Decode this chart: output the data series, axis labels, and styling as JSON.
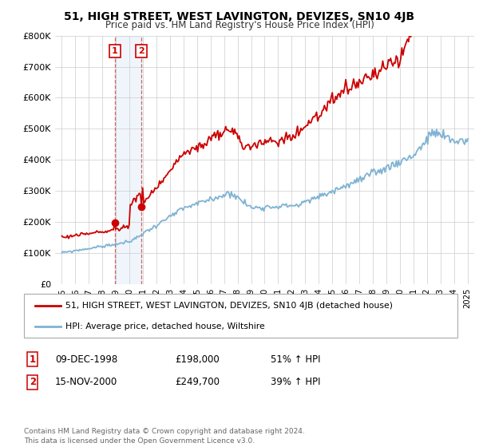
{
  "title": "51, HIGH STREET, WEST LAVINGTON, DEVIZES, SN10 4JB",
  "subtitle": "Price paid vs. HM Land Registry's House Price Index (HPI)",
  "ylim": [
    0,
    800000
  ],
  "yticks": [
    0,
    100000,
    200000,
    300000,
    400000,
    500000,
    600000,
    700000,
    800000
  ],
  "ytick_labels": [
    "£0",
    "£100K",
    "£200K",
    "£300K",
    "£400K",
    "£500K",
    "£600K",
    "£700K",
    "£800K"
  ],
  "sale1_date": 1998.92,
  "sale1_price": 198000,
  "sale2_date": 2000.88,
  "sale2_price": 249700,
  "legend_line1": "51, HIGH STREET, WEST LAVINGTON, DEVIZES, SN10 4JB (detached house)",
  "legend_line2": "HPI: Average price, detached house, Wiltshire",
  "table_date1": "09-DEC-1998",
  "table_price1": "£198,000",
  "table_pct1": "51% ↑ HPI",
  "table_date2": "15-NOV-2000",
  "table_price2": "£249,700",
  "table_pct2": "39% ↑ HPI",
  "copyright_text": "Contains HM Land Registry data © Crown copyright and database right 2024.\nThis data is licensed under the Open Government Licence v3.0.",
  "line_color_red": "#cc0000",
  "line_color_blue": "#7fb3d3",
  "bg_color": "#ffffff",
  "grid_color": "#cccccc",
  "shade_color": "#ddeeff"
}
